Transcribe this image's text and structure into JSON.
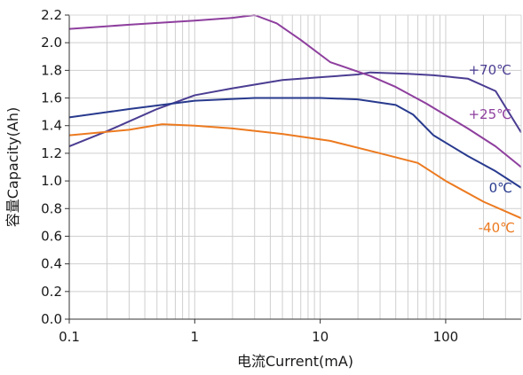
{
  "chart_data": {
    "type": "line",
    "title": "",
    "xlabel": "电流Current(mA)",
    "ylabel": "容量Capacity(Ah)",
    "x_scale": "log",
    "xlim": [
      0.1,
      400
    ],
    "ylim": [
      0.0,
      2.2
    ],
    "grid": true,
    "x_ticks": [
      0.1,
      1,
      10,
      100
    ],
    "x_tick_labels": [
      "0.1",
      "1",
      "10",
      "100"
    ],
    "y_ticks": [
      0.0,
      0.2,
      0.4,
      0.6,
      0.8,
      1.0,
      1.2,
      1.4,
      1.6,
      1.8,
      2.0,
      2.2
    ],
    "y_tick_labels": [
      "0.0",
      "0.2",
      "0.4",
      "0.6",
      "0.8",
      "1.0",
      "1.2",
      "1.4",
      "1.6",
      "1.8",
      "2.0",
      "2.2"
    ],
    "series": [
      {
        "name": "+70℃",
        "color": "#4b3d92",
        "x": [
          0.1,
          0.2,
          0.5,
          1,
          2,
          5,
          10,
          20,
          25,
          50,
          80,
          150,
          250,
          400
        ],
        "y": [
          1.25,
          1.36,
          1.52,
          1.62,
          1.67,
          1.73,
          1.75,
          1.77,
          1.785,
          1.775,
          1.765,
          1.74,
          1.65,
          1.35
        ]
      },
      {
        "name": "+25℃",
        "color": "#8e3f9e",
        "x": [
          0.1,
          0.3,
          1,
          2,
          3,
          4.5,
          7,
          12,
          25,
          40,
          70,
          150,
          250,
          400
        ],
        "y": [
          2.1,
          2.13,
          2.16,
          2.18,
          2.2,
          2.14,
          2.02,
          1.86,
          1.76,
          1.68,
          1.56,
          1.38,
          1.25,
          1.1
        ]
      },
      {
        "name": "0℃",
        "color": "#283a8e",
        "x": [
          0.1,
          0.3,
          1,
          3,
          10,
          20,
          40,
          55,
          80,
          150,
          250,
          400
        ],
        "y": [
          1.46,
          1.52,
          1.58,
          1.6,
          1.6,
          1.59,
          1.55,
          1.48,
          1.33,
          1.18,
          1.07,
          0.95
        ]
      },
      {
        "name": "-40℃",
        "color": "#ec7a20",
        "x": [
          0.1,
          0.3,
          0.55,
          1,
          2,
          5,
          12,
          30,
          60,
          100,
          200,
          400
        ],
        "y": [
          1.33,
          1.37,
          1.41,
          1.4,
          1.38,
          1.34,
          1.29,
          1.2,
          1.13,
          1.0,
          0.85,
          0.73
        ]
      }
    ],
    "annotations": [
      {
        "text": "+70℃",
        "series": 0
      },
      {
        "text": "+25℃",
        "series": 1
      },
      {
        "text": "0℃",
        "series": 2
      },
      {
        "text": "-40℃",
        "series": 3
      }
    ]
  }
}
